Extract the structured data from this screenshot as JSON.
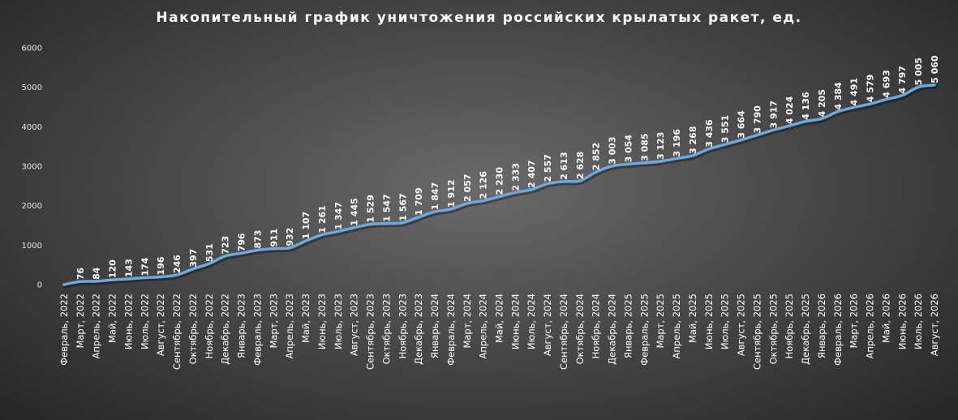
{
  "chart_data": {
    "type": "line",
    "title": "Накопительный график уничтожения российских крылатых ракет, ед.",
    "xlabel": "",
    "ylabel": "",
    "ylim": [
      0,
      6000
    ],
    "yticks": [
      0,
      1000,
      2000,
      3000,
      4000,
      5000,
      6000
    ],
    "grid": false,
    "legend": "none",
    "line_color": "#6fa8dc",
    "categories": [
      "Февраль, 2022",
      "Март, 2022",
      "Апрель, 2022",
      "Май, 2022",
      "Июнь, 2022",
      "Июль, 2022",
      "Август, 2022",
      "Сентябрь, 2022",
      "Октябрь, 2022",
      "Ноябрь, 2022",
      "Декабрь, 2022",
      "Январь, 2023",
      "Февраль, 2023",
      "Март, 2023",
      "Апрель, 2023",
      "Май, 2023",
      "Июнь, 2023",
      "Июль, 2023",
      "Август, 2023",
      "Сентябрь, 2023",
      "Октябрь, 2023",
      "Ноябрь, 2023",
      "Декабрь, 2023",
      "Январь, 2024",
      "Февраль, 2024",
      "Март, 2024",
      "Апрель, 2024",
      "Май, 2024",
      "Июнь, 2024",
      "Июль, 2024",
      "Август, 2024",
      "Сентябрь, 2024",
      "Октябрь, 2024",
      "Ноябрь, 2024",
      "Декабрь, 2024",
      "Январь, 2025",
      "Февраль, 2025",
      "Март, 2025",
      "Апрель, 2025",
      "Май, 2025",
      "Июнь, 2025",
      "Июль, 2025",
      "Август, 2025",
      "Сентябрь, 2025",
      "Октябрь, 2025",
      "Ноябрь, 2025",
      "Декабрь, 2025",
      "Январь, 2026",
      "Февраль, 2026",
      "Март, 2026",
      "Апрель, 2026",
      "Май, 2026",
      "Июнь, 2026",
      "Июль, 2026",
      "Август, 2026"
    ],
    "values": [
      0,
      76,
      84,
      120,
      143,
      174,
      196,
      246,
      397,
      531,
      723,
      796,
      873,
      911,
      932,
      1107,
      1261,
      1347,
      1445,
      1529,
      1547,
      1567,
      1709,
      1847,
      1912,
      2057,
      2126,
      2230,
      2333,
      2407,
      2557,
      2613,
      2628,
      2852,
      3003,
      3054,
      3085,
      3123,
      3196,
      3268,
      3436,
      3551,
      3664,
      3790,
      3917,
      4024,
      4136,
      4205,
      4384,
      4491,
      4579,
      4693,
      4797,
      5005,
      5060
    ],
    "data_labels": [
      "",
      "76",
      "84",
      "120",
      "143",
      "174",
      "196",
      "246",
      "397",
      "531",
      "723",
      "796",
      "873",
      "911",
      "932",
      "1 107",
      "1 261",
      "1 347",
      "1 445",
      "1 529",
      "1 547",
      "1 567",
      "1 709",
      "1 847",
      "1 912",
      "2 057",
      "2 126",
      "2 230",
      "2 333",
      "2 407",
      "2 557",
      "2 613",
      "2 628",
      "2 852",
      "3 003",
      "3 054",
      "3 085",
      "3 123",
      "3 196",
      "3 268",
      "3 436",
      "3 551",
      "3 664",
      "3 790",
      "3 917",
      "4 024",
      "4 136",
      "4 205",
      "4 384",
      "4 491",
      "4 579",
      "4 693",
      "4 797",
      "5 005",
      "5 060"
    ]
  }
}
